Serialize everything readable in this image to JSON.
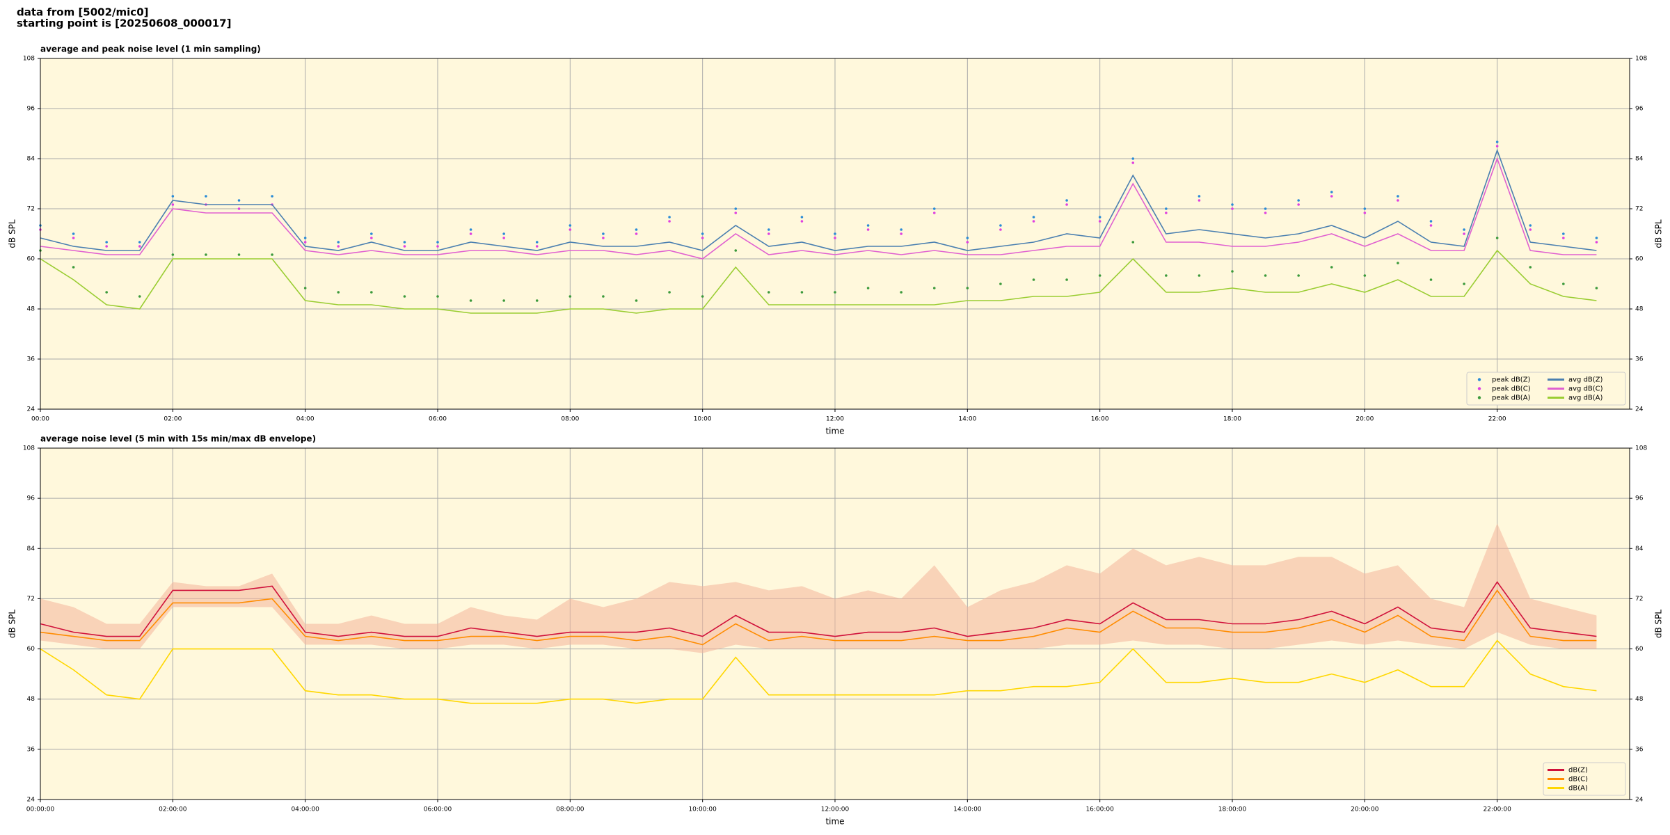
{
  "header": {
    "line1": "data from [5002/mic0]",
    "line2": "starting point is [20250608_000017]"
  },
  "chart_data": [
    {
      "type": "line",
      "title": "average and peak noise level (1 min sampling)",
      "xlabel": "time",
      "ylabel": "dB SPL",
      "x": [
        0,
        0.5,
        1,
        1.5,
        2,
        2.5,
        3,
        3.5,
        4,
        4.5,
        5,
        5.5,
        6,
        6.5,
        7,
        7.5,
        8,
        8.5,
        9,
        9.5,
        10,
        10.5,
        11,
        11.5,
        12,
        12.5,
        13,
        13.5,
        14,
        14.5,
        15,
        15.5,
        16,
        16.5,
        17,
        17.5,
        18,
        18.5,
        19,
        19.5,
        20,
        20.5,
        21,
        21.5,
        22,
        22.5,
        23,
        23.5
      ],
      "xlim": [
        0,
        24
      ],
      "xticks": [
        {
          "value": 0,
          "label": "00:00"
        },
        {
          "value": 2,
          "label": "02:00"
        },
        {
          "value": 4,
          "label": "04:00"
        },
        {
          "value": 6,
          "label": "06:00"
        },
        {
          "value": 8,
          "label": "08:00"
        },
        {
          "value": 10,
          "label": "10:00"
        },
        {
          "value": 12,
          "label": "12:00"
        },
        {
          "value": 14,
          "label": "14:00"
        },
        {
          "value": 16,
          "label": "16:00"
        },
        {
          "value": 18,
          "label": "18:00"
        },
        {
          "value": 20,
          "label": "20:00"
        },
        {
          "value": 22,
          "label": "22:00"
        }
      ],
      "ylim": [
        24,
        108
      ],
      "yticks": [
        24,
        36,
        48,
        60,
        72,
        84,
        96,
        108
      ],
      "grid": true,
      "legend": "lower right",
      "series": [
        {
          "name": "peak dB(Z)",
          "style": "scatter",
          "color": "#2a8bd6",
          "values": [
            68,
            66,
            64,
            64,
            75,
            75,
            74,
            75,
            65,
            64,
            66,
            64,
            64,
            67,
            66,
            64,
            68,
            66,
            67,
            70,
            66,
            72,
            67,
            70,
            66,
            68,
            67,
            72,
            65,
            68,
            70,
            74,
            70,
            84,
            72,
            75,
            73,
            72,
            74,
            76,
            72,
            75,
            69,
            67,
            88,
            68,
            66,
            65
          ]
        },
        {
          "name": "peak dB(C)",
          "style": "scatter",
          "color": "#e040e0",
          "values": [
            67,
            65,
            63,
            63,
            73,
            73,
            72,
            73,
            64,
            63,
            65,
            63,
            63,
            66,
            65,
            63,
            67,
            65,
            66,
            69,
            65,
            71,
            66,
            69,
            65,
            67,
            66,
            71,
            64,
            67,
            69,
            73,
            69,
            83,
            71,
            74,
            72,
            71,
            73,
            75,
            71,
            74,
            68,
            66,
            87,
            67,
            65,
            64
          ]
        },
        {
          "name": "peak dB(A)",
          "style": "scatter",
          "color": "#3c9a3c",
          "values": [
            62,
            58,
            52,
            51,
            61,
            61,
            61,
            61,
            53,
            52,
            52,
            51,
            51,
            50,
            50,
            50,
            51,
            51,
            50,
            52,
            51,
            62,
            52,
            52,
            52,
            53,
            52,
            53,
            53,
            54,
            55,
            55,
            56,
            64,
            56,
            56,
            57,
            56,
            56,
            58,
            56,
            59,
            55,
            54,
            65,
            58,
            54,
            53
          ]
        },
        {
          "name": "avg dB(Z)",
          "style": "line",
          "color": "#4a7fb0",
          "values": [
            65,
            63,
            62,
            62,
            74,
            73,
            73,
            73,
            63,
            62,
            64,
            62,
            62,
            64,
            63,
            62,
            64,
            63,
            63,
            64,
            62,
            68,
            63,
            64,
            62,
            63,
            63,
            64,
            62,
            63,
            64,
            66,
            65,
            80,
            66,
            67,
            66,
            65,
            66,
            68,
            65,
            69,
            64,
            63,
            86,
            64,
            63,
            62
          ]
        },
        {
          "name": "avg dB(C)",
          "style": "line",
          "color": "#e060d0",
          "values": [
            63,
            62,
            61,
            61,
            72,
            71,
            71,
            71,
            62,
            61,
            62,
            61,
            61,
            62,
            62,
            61,
            62,
            62,
            61,
            62,
            60,
            66,
            61,
            62,
            61,
            62,
            61,
            62,
            61,
            61,
            62,
            63,
            63,
            78,
            64,
            64,
            63,
            63,
            64,
            66,
            63,
            66,
            62,
            62,
            84,
            62,
            61,
            61
          ]
        },
        {
          "name": "avg dB(A)",
          "style": "line",
          "color": "#9acd32",
          "values": [
            60,
            55,
            49,
            48,
            60,
            60,
            60,
            60,
            50,
            49,
            49,
            48,
            48,
            47,
            47,
            47,
            48,
            48,
            47,
            48,
            48,
            58,
            49,
            49,
            49,
            49,
            49,
            49,
            50,
            50,
            51,
            51,
            52,
            60,
            52,
            52,
            53,
            52,
            52,
            54,
            52,
            55,
            51,
            51,
            62,
            54,
            51,
            50
          ]
        }
      ]
    },
    {
      "type": "line",
      "title": "average noise level (5 min with 15s min/max dB envelope)",
      "xlabel": "time",
      "ylabel": "dB SPL",
      "x": [
        0,
        0.5,
        1,
        1.5,
        2,
        2.5,
        3,
        3.5,
        4,
        4.5,
        5,
        5.5,
        6,
        6.5,
        7,
        7.5,
        8,
        8.5,
        9,
        9.5,
        10,
        10.5,
        11,
        11.5,
        12,
        12.5,
        13,
        13.5,
        14,
        14.5,
        15,
        15.5,
        16,
        16.5,
        17,
        17.5,
        18,
        18.5,
        19,
        19.5,
        20,
        20.5,
        21,
        21.5,
        22,
        22.5,
        23,
        23.5
      ],
      "xlim": [
        0,
        24
      ],
      "xticks": [
        {
          "value": 0,
          "label": "00:00:00"
        },
        {
          "value": 2,
          "label": "02:00:00"
        },
        {
          "value": 4,
          "label": "04:00:00"
        },
        {
          "value": 6,
          "label": "06:00:00"
        },
        {
          "value": 8,
          "label": "08:00:00"
        },
        {
          "value": 10,
          "label": "10:00:00"
        },
        {
          "value": 12,
          "label": "12:00:00"
        },
        {
          "value": 14,
          "label": "14:00:00"
        },
        {
          "value": 16,
          "label": "16:00:00"
        },
        {
          "value": 18,
          "label": "18:00:00"
        },
        {
          "value": 20,
          "label": "20:00:00"
        },
        {
          "value": 22,
          "label": "22:00:00"
        }
      ],
      "ylim": [
        24,
        108
      ],
      "yticks": [
        24,
        36,
        48,
        60,
        72,
        84,
        96,
        108
      ],
      "grid": true,
      "legend": "lower right",
      "envelope": {
        "color": "#f4b49a",
        "upper": [
          72,
          70,
          66,
          66,
          76,
          75,
          75,
          78,
          66,
          66,
          68,
          66,
          66,
          70,
          68,
          67,
          72,
          70,
          72,
          76,
          75,
          76,
          74,
          75,
          72,
          74,
          72,
          80,
          70,
          74,
          76,
          80,
          78,
          84,
          80,
          82,
          80,
          80,
          82,
          82,
          78,
          80,
          72,
          70,
          90,
          72,
          70,
          68
        ],
        "lower": [
          62,
          61,
          60,
          60,
          70,
          70,
          70,
          70,
          61,
          61,
          61,
          60,
          60,
          61,
          61,
          60,
          61,
          61,
          60,
          60,
          59,
          61,
          60,
          60,
          60,
          60,
          60,
          60,
          60,
          60,
          60,
          61,
          61,
          62,
          61,
          61,
          60,
          60,
          61,
          62,
          61,
          62,
          61,
          60,
          64,
          61,
          60,
          60
        ]
      },
      "series": [
        {
          "name": "dB(Z)",
          "style": "line",
          "color": "#d0103a",
          "values": [
            66,
            64,
            63,
            63,
            74,
            74,
            74,
            75,
            64,
            63,
            64,
            63,
            63,
            65,
            64,
            63,
            64,
            64,
            64,
            65,
            63,
            68,
            64,
            64,
            63,
            64,
            64,
            65,
            63,
            64,
            65,
            67,
            66,
            71,
            67,
            67,
            66,
            66,
            67,
            69,
            66,
            70,
            65,
            64,
            76,
            65,
            64,
            63
          ]
        },
        {
          "name": "dB(C)",
          "style": "line",
          "color": "#ff8c00",
          "values": [
            64,
            63,
            62,
            62,
            71,
            71,
            71,
            72,
            63,
            62,
            63,
            62,
            62,
            63,
            63,
            62,
            63,
            63,
            62,
            63,
            61,
            66,
            62,
            63,
            62,
            62,
            62,
            63,
            62,
            62,
            63,
            65,
            64,
            69,
            65,
            65,
            64,
            64,
            65,
            67,
            64,
            68,
            63,
            62,
            74,
            63,
            62,
            62
          ]
        },
        {
          "name": "dB(A)",
          "style": "line",
          "color": "#ffd700",
          "values": [
            60,
            55,
            49,
            48,
            60,
            60,
            60,
            60,
            50,
            49,
            49,
            48,
            48,
            47,
            47,
            47,
            48,
            48,
            47,
            48,
            48,
            58,
            49,
            49,
            49,
            49,
            49,
            49,
            50,
            50,
            51,
            51,
            52,
            60,
            52,
            52,
            53,
            52,
            52,
            54,
            52,
            55,
            51,
            51,
            62,
            54,
            51,
            50
          ]
        }
      ]
    }
  ]
}
